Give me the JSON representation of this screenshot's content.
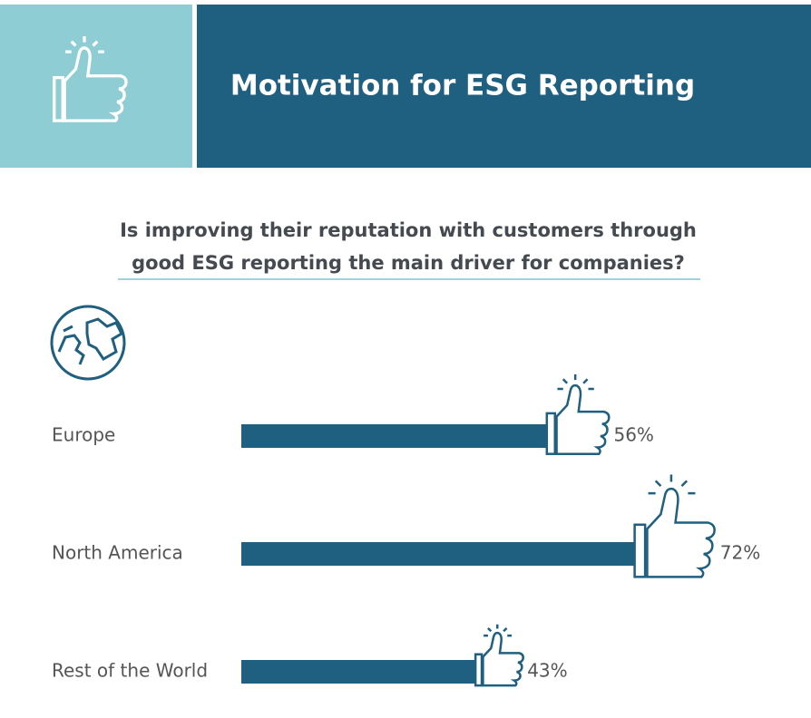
{
  "chart_data": {
    "type": "bar",
    "title": "Motivation for ESG Reporting",
    "subtitle": "Is improving their reputation with customers through good ESG reporting the main driver for companies?",
    "categories": [
      "Europe",
      "North America",
      "Rest of the World"
    ],
    "values": [
      56,
      72,
      43
    ],
    "value_labels": [
      "56%",
      "72%",
      "43%"
    ],
    "color": "#1f5f80"
  }
}
